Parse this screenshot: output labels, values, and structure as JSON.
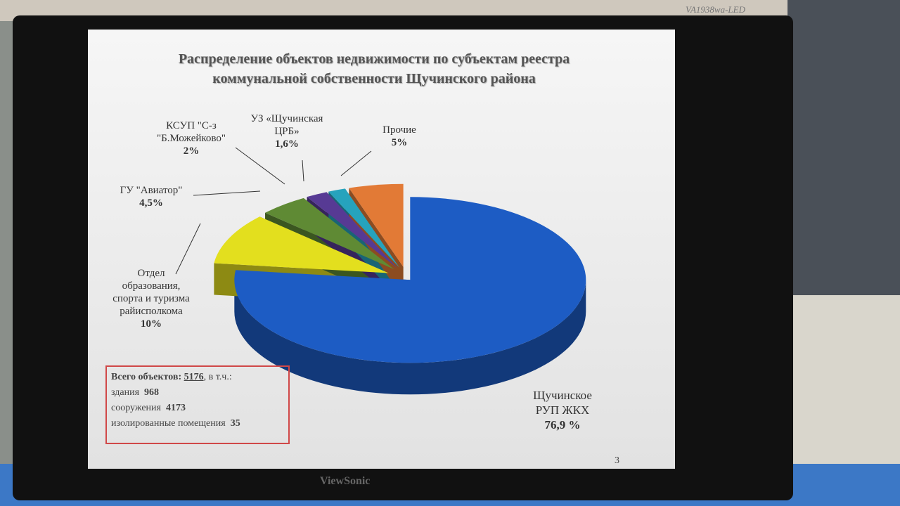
{
  "chart_data": {
    "type": "pie",
    "title": "Распределение объектов недвижимости по субъектам реестра\nкоммунальной собственности Щучинского района",
    "categories": [
      "Щучинское\nРУП ЖКХ",
      "Отдел\nобразования,\nспорта и туризма\nрайисполкома",
      "ГУ \"Авиатор\"",
      "КСУП \"С-з\n\"Б.Можейково\"",
      "УЗ «Щучинская\nЦРБ»",
      "Прочие"
    ],
    "values": [
      76.9,
      10,
      4.5,
      2,
      1.6,
      5
    ],
    "value_labels": [
      "76,9 %",
      "10%",
      "4,5%",
      "2%",
      "1,6%",
      "5%"
    ],
    "colors": [
      "#1d5cc4",
      "#e3df1e",
      "#5f8a34",
      "#573a94",
      "#26a3bd",
      "#e27a36"
    ]
  },
  "summary": {
    "total_label": "Всего объектов:",
    "total": 5176,
    "total_suffix": ", в т.ч.:",
    "items": [
      {
        "label": "здания",
        "value": 968
      },
      {
        "label": "сооружения",
        "value": 4173
      },
      {
        "label": "изолированные помещения",
        "value": 35
      }
    ]
  },
  "slide_number": "3",
  "monitor": {
    "brand": "ViewSonic",
    "model": "VA1938wa-LED"
  }
}
